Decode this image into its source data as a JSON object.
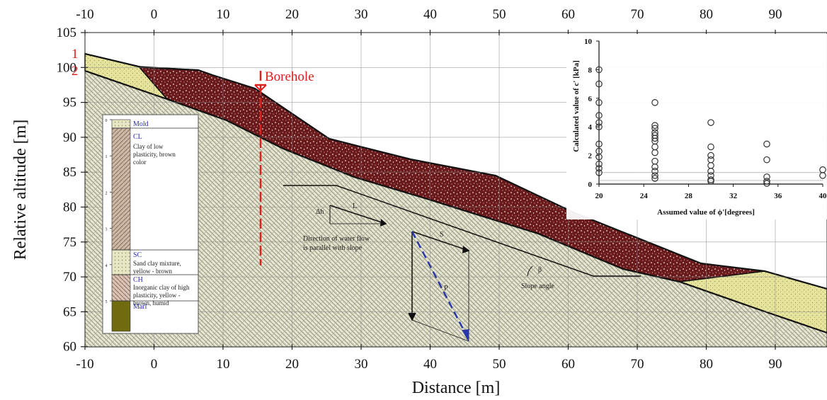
{
  "figure": {
    "top_ticks": [
      "-10",
      "0",
      "10",
      "20",
      "30",
      "40",
      "50",
      "60",
      "70",
      "80",
      "90"
    ],
    "bottom_ticks": [
      "-10",
      "0",
      "10",
      "20",
      "30",
      "40",
      "50",
      "60",
      "70",
      "80",
      "90"
    ],
    "y_ticks": [
      "105",
      "100",
      "95",
      "90",
      "85",
      "80",
      "75",
      "70",
      "65",
      "60"
    ],
    "xlabel": "Distance [m]",
    "ylabel": "Relative altitude [m]",
    "line_labels": [
      "1",
      "2"
    ],
    "borehole_label": "Borehole",
    "flow_labels": {
      "dh": "Δh",
      "L": "L",
      "direction": "Direction of water flow",
      "direction2": "is parallel with slope",
      "S": "S",
      "P": "P",
      "beta": "β",
      "slope_angle": "Slope angle"
    },
    "colors": {
      "soil_hatch": "#cfd0b4",
      "slip_mass": "#6b1a1c",
      "yellow_soil": "#e6e39c",
      "marl": "#6f6b0e",
      "red": "#e0201c",
      "blue_dash": "#2b36a8"
    }
  },
  "borehole_log": {
    "depth_ticks": [
      "0",
      "1",
      "2",
      "3",
      "4",
      "5"
    ],
    "layers": [
      {
        "name": "Mold",
        "desc": ""
      },
      {
        "name": "CL",
        "desc": "Clay of low plasticity, brown color"
      },
      {
        "name": "SC",
        "desc": "Sand clay mixture, yellow - brown"
      },
      {
        "name": "CH",
        "desc": "Inorganic clay of high plasticity, yellow - brown, humid"
      },
      {
        "name": "Marl",
        "desc": ""
      }
    ]
  },
  "chart_data": {
    "type": "scatter",
    "xlabel": "Assumed value of ϕ'[degrees]",
    "ylabel": "Calculated value of c' [kPa]",
    "xlim": [
      20,
      40
    ],
    "ylim": [
      0,
      10
    ],
    "x_ticks": [
      20,
      24,
      28,
      32,
      36,
      40
    ],
    "y_ticks": [
      0,
      2,
      4,
      6,
      8,
      10
    ],
    "grid": true,
    "points": [
      [
        20,
        8.0
      ],
      [
        20,
        7.0
      ],
      [
        20,
        5.7
      ],
      [
        20,
        4.8
      ],
      [
        20,
        4.3
      ],
      [
        20,
        4.0
      ],
      [
        20,
        2.8
      ],
      [
        20,
        2.3
      ],
      [
        20,
        1.9
      ],
      [
        20,
        1.4
      ],
      [
        20,
        1.1
      ],
      [
        20,
        0.8
      ],
      [
        25,
        5.7
      ],
      [
        25,
        4.1
      ],
      [
        25,
        3.9
      ],
      [
        25,
        3.6
      ],
      [
        25,
        3.4
      ],
      [
        25,
        3.2
      ],
      [
        25,
        3.0
      ],
      [
        25,
        2.6
      ],
      [
        25,
        2.2
      ],
      [
        25,
        1.6
      ],
      [
        25,
        1.2
      ],
      [
        25,
        0.9
      ],
      [
        25,
        0.6
      ],
      [
        25,
        0.4
      ],
      [
        30,
        4.3
      ],
      [
        30,
        2.6
      ],
      [
        30,
        2.0
      ],
      [
        30,
        1.7
      ],
      [
        30,
        1.3
      ],
      [
        30,
        0.9
      ],
      [
        30,
        0.6
      ],
      [
        30,
        0.3
      ],
      [
        30,
        0.2
      ],
      [
        35,
        2.8
      ],
      [
        35,
        1.7
      ],
      [
        35,
        0.5
      ],
      [
        35,
        0.2
      ],
      [
        35,
        0.05
      ],
      [
        40,
        1.0
      ],
      [
        40,
        0.6
      ]
    ]
  }
}
